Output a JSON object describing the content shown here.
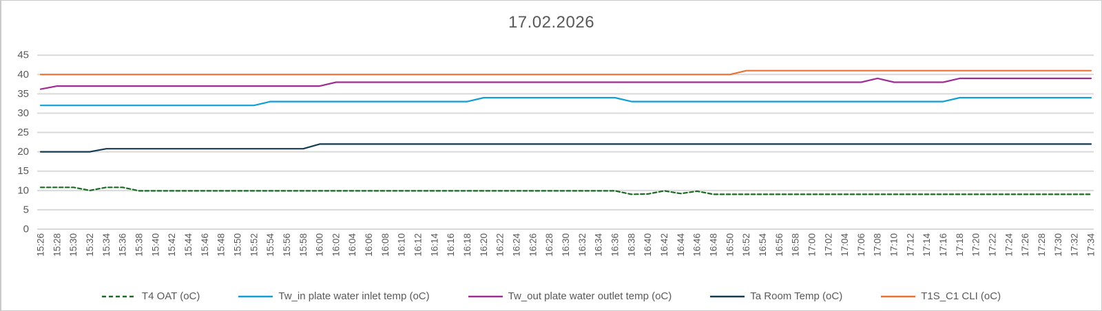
{
  "title": "17.02.2026",
  "colors": {
    "gridline": "#D9D9D9",
    "axis_text": "#595959",
    "title_text": "#595959",
    "background": "#FFFFFF",
    "border": "#C9C9C9"
  },
  "chart_data": {
    "type": "line",
    "title": "17.02.2026",
    "xlabel": "",
    "ylabel": "",
    "ylim": [
      0,
      45
    ],
    "y_ticks": [
      0,
      5,
      10,
      15,
      20,
      25,
      30,
      35,
      40,
      45
    ],
    "grid": true,
    "legend_position": "bottom",
    "x_labels": [
      "15:26",
      "15:28",
      "15:30",
      "15:32",
      "15:34",
      "15:36",
      "15:38",
      "15:40",
      "15:42",
      "15:44",
      "15:46",
      "15:48",
      "15:50",
      "15:52",
      "15:54",
      "15:56",
      "15:58",
      "16:00",
      "16:02",
      "16:04",
      "16:06",
      "16:08",
      "16:10",
      "16:12",
      "16:14",
      "16:16",
      "16:18",
      "16:20",
      "16:22",
      "16:24",
      "16:26",
      "16:28",
      "16:30",
      "16:32",
      "16:34",
      "16:36",
      "16:38",
      "16:40",
      "16:42",
      "16:44",
      "16:46",
      "16:48",
      "16:50",
      "16:52",
      "16:54",
      "16:56",
      "16:58",
      "17:00",
      "17:02",
      "17:04",
      "17:06",
      "17:08",
      "17:10",
      "17:12",
      "17:14",
      "17:16",
      "17:18",
      "17:20",
      "17:22",
      "17:24",
      "17:26",
      "17:28",
      "17:30",
      "17:32",
      "17:34"
    ],
    "series": [
      {
        "name": "T4 OAT (oC)",
        "color": "#196B24",
        "dashed": true,
        "values": [
          10.8,
          10.8,
          10.8,
          10,
          10.8,
          10.8,
          9.9,
          9.9,
          9.9,
          9.9,
          9.9,
          9.9,
          9.9,
          9.9,
          9.9,
          9.9,
          9.9,
          9.9,
          9.9,
          9.9,
          9.9,
          9.9,
          9.9,
          9.9,
          9.9,
          9.9,
          9.9,
          9.9,
          9.9,
          9.9,
          9.9,
          9.9,
          9.9,
          9.9,
          9.9,
          9.9,
          9,
          9.1,
          9.9,
          9.2,
          9.8,
          9,
          9,
          9,
          9,
          9,
          9,
          9,
          9,
          9,
          9,
          9,
          9,
          9,
          9,
          9,
          9,
          9,
          9,
          9,
          9,
          9,
          9,
          9,
          9
        ]
      },
      {
        "name": "Tw_in plate water inlet temp (oC)",
        "color": "#0F9ED5",
        "dashed": false,
        "values": [
          32,
          32,
          32,
          32,
          32,
          32,
          32,
          32,
          32,
          32,
          32,
          32,
          32,
          32,
          33,
          33,
          33,
          33,
          33,
          33,
          33,
          33,
          33,
          33,
          33,
          33,
          33,
          34,
          34,
          34,
          34,
          34,
          34,
          34,
          34,
          34,
          33,
          33,
          33,
          33,
          33,
          33,
          33,
          33,
          33,
          33,
          33,
          33,
          33,
          33,
          33,
          33,
          33,
          33,
          33,
          33,
          34,
          34,
          34,
          34,
          34,
          34,
          34,
          34,
          34
        ]
      },
      {
        "name": "Tw_out plate water outlet temp (oC)",
        "color": "#A02B93",
        "dashed": false,
        "values": [
          36.2,
          37,
          37,
          37,
          37,
          37,
          37,
          37,
          37,
          37,
          37,
          37,
          37,
          37,
          37,
          37,
          37,
          37,
          38,
          38,
          38,
          38,
          38,
          38,
          38,
          38,
          38,
          38,
          38,
          38,
          38,
          38,
          38,
          38,
          38,
          38,
          38,
          38,
          38,
          38,
          38,
          38,
          38,
          38,
          38,
          38,
          38,
          38,
          38,
          38,
          38,
          39,
          38,
          38,
          38,
          38,
          39,
          39,
          39,
          39,
          39,
          39,
          39,
          39,
          39
        ]
      },
      {
        "name": "Ta Room Temp (oC)",
        "color": "#143A50",
        "dashed": false,
        "values": [
          20,
          20,
          20,
          20,
          20.8,
          20.8,
          20.8,
          20.8,
          20.8,
          20.8,
          20.8,
          20.8,
          20.8,
          20.8,
          20.8,
          20.8,
          20.8,
          22,
          22,
          22,
          22,
          22,
          22,
          22,
          22,
          22,
          22,
          22,
          22,
          22,
          22,
          22,
          22,
          22,
          22,
          22,
          22,
          22,
          22,
          22,
          22,
          22,
          22,
          22,
          22,
          22,
          22,
          22,
          22,
          22,
          22,
          22,
          22,
          22,
          22,
          22,
          22,
          22,
          22,
          22,
          22,
          22,
          22,
          22,
          22
        ]
      },
      {
        "name": "T1S_C1 CLI (oC)",
        "color": "#E97132",
        "dashed": false,
        "values": [
          40,
          40,
          40,
          40,
          40,
          40,
          40,
          40,
          40,
          40,
          40,
          40,
          40,
          40,
          40,
          40,
          40,
          40,
          40,
          40,
          40,
          40,
          40,
          40,
          40,
          40,
          40,
          40,
          40,
          40,
          40,
          40,
          40,
          40,
          40,
          40,
          40,
          40,
          40,
          40,
          40,
          40,
          40,
          41,
          41,
          41,
          41,
          41,
          41,
          41,
          41,
          41,
          41,
          41,
          41,
          41,
          41,
          41,
          41,
          41,
          41,
          41,
          41,
          41,
          41
        ]
      }
    ]
  }
}
